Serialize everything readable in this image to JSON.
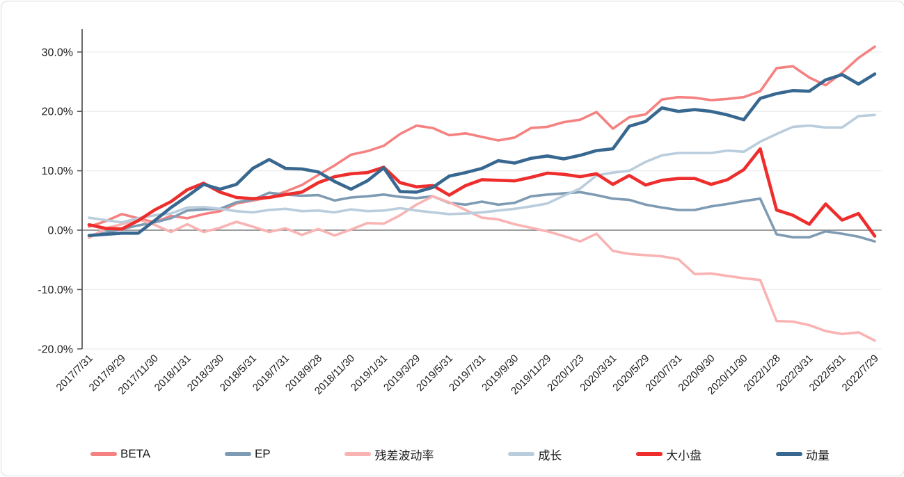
{
  "chart_data": {
    "type": "line",
    "title": "",
    "xlabel": "",
    "ylabel": "",
    "grid": "horizontal-light",
    "legend_position": "bottom",
    "ylim": [
      -20,
      33.8
    ],
    "yticks": [
      {
        "label": "30.0%",
        "value": 30
      },
      {
        "label": "20.0%",
        "value": 20
      },
      {
        "label": "10.0%",
        "value": 10
      },
      {
        "label": "0.0%",
        "value": 0
      },
      {
        "label": "-10.0%",
        "value": -10
      },
      {
        "label": "-20.0%",
        "value": -20
      }
    ],
    "zero_line": true,
    "x_tick_labels": [
      "2017/7/31",
      "2017/9/29",
      "2017/11/30",
      "2018/1/31",
      "2018/3/30",
      "2018/5/31",
      "2018/7/31",
      "2018/9/28",
      "2018/11/30",
      "2019/1/31",
      "2019/3/29",
      "2019/5/31",
      "2019/7/31",
      "2019/9/30",
      "2019/11/29",
      "2020/1/23",
      "2020/3/31",
      "2020/5/29",
      "2020/7/31",
      "2020/9/30",
      "2020/11/30",
      "2022/1/28",
      "2022/3/31",
      "2022/5/31",
      "2022/7/29"
    ],
    "x_dates": [
      "2017/7/31",
      "2017/8/31",
      "2017/9/29",
      "2017/10/31",
      "2017/11/30",
      "2017/12/29",
      "2018/1/31",
      "2018/2/28",
      "2018/3/30",
      "2018/4/30",
      "2018/5/31",
      "2018/6/29",
      "2018/7/31",
      "2018/8/31",
      "2018/9/28",
      "2018/10/31",
      "2018/11/30",
      "2018/12/28",
      "2019/1/31",
      "2019/2/28",
      "2019/3/29",
      "2019/4/30",
      "2019/5/31",
      "2019/6/28",
      "2019/7/31",
      "2019/8/30",
      "2019/9/30",
      "2019/10/31",
      "2019/11/29",
      "2019/12/31",
      "2020/1/23",
      "2020/2/28",
      "2020/3/31",
      "2020/4/30",
      "2020/5/29",
      "2020/6/30",
      "2020/7/31",
      "2020/8/31",
      "2020/9/30",
      "2020/10/30",
      "2020/11/30",
      "2020/12/31",
      "2022/1/28",
      "2022/2/28",
      "2022/3/31",
      "2022/4/29",
      "2022/5/31",
      "2022/6/30",
      "2022/7/29"
    ],
    "series": [
      {
        "name": "BETA",
        "color": "#f58181",
        "line_width": 3.6,
        "values": [
          0.6,
          1.5,
          2.7,
          2.0,
          1.3,
          2.4,
          2.0,
          2.7,
          3.2,
          4.5,
          5.0,
          5.5,
          6.5,
          7.6,
          9.3,
          10.9,
          12.7,
          13.3,
          14.2,
          16.2,
          17.6,
          17.2,
          16.0,
          16.3,
          15.7,
          15.1,
          15.6,
          17.2,
          17.4,
          18.2,
          18.6,
          19.9,
          17.1,
          19.0,
          19.5,
          22.0,
          22.4,
          22.3,
          21.9,
          22.1,
          22.4,
          23.4,
          27.3,
          27.6,
          25.7,
          24.4,
          26.5,
          29.0,
          30.9
        ]
      },
      {
        "name": "EP",
        "color": "#7e9bb4",
        "line_width": 3.6,
        "values": [
          -0.9,
          -0.4,
          0.2,
          0.8,
          1.3,
          2.0,
          3.3,
          3.5,
          3.6,
          4.7,
          5.1,
          6.3,
          6.0,
          5.8,
          5.9,
          5.0,
          5.5,
          5.7,
          6.0,
          5.6,
          5.4,
          5.7,
          4.6,
          4.3,
          4.8,
          4.3,
          4.6,
          5.7,
          6.0,
          6.2,
          6.4,
          5.9,
          5.3,
          5.1,
          4.3,
          3.8,
          3.4,
          3.4,
          4.0,
          4.4,
          4.9,
          5.3,
          -0.7,
          -1.2,
          -1.2,
          -0.2,
          -0.6,
          -1.1,
          -1.9
        ]
      },
      {
        "name": "残差波动率",
        "color": "#f9b3b3",
        "line_width": 3.6,
        "values": [
          -1.3,
          0.3,
          1.0,
          1.8,
          0.9,
          -0.3,
          1.0,
          -0.3,
          0.4,
          1.4,
          0.6,
          -0.3,
          0.3,
          -0.8,
          0.2,
          -0.9,
          0.1,
          1.2,
          1.1,
          2.5,
          4.3,
          5.7,
          4.7,
          3.4,
          2.1,
          1.8,
          1.0,
          0.4,
          -0.2,
          -1.0,
          -1.9,
          -0.6,
          -3.5,
          -4.0,
          -4.2,
          -4.4,
          -4.9,
          -7.4,
          -7.3,
          -7.7,
          -8.1,
          -8.4,
          -15.3,
          -15.4,
          -16.0,
          -17.0,
          -17.5,
          -17.2,
          -18.6
        ]
      },
      {
        "name": "成长",
        "color": "#bacddd",
        "line_width": 3.6,
        "values": [
          2.1,
          1.7,
          1.3,
          2.0,
          2.5,
          2.8,
          3.8,
          3.9,
          3.6,
          3.2,
          3.0,
          3.4,
          3.6,
          3.2,
          3.3,
          3.0,
          3.5,
          3.2,
          3.3,
          3.7,
          3.3,
          3.0,
          2.7,
          2.8,
          3.0,
          3.3,
          3.6,
          4.0,
          4.5,
          5.8,
          7.0,
          9.2,
          9.7,
          10.0,
          11.5,
          12.6,
          13.0,
          13.0,
          13.0,
          13.4,
          13.2,
          14.9,
          16.2,
          17.4,
          17.6,
          17.3,
          17.3,
          19.2,
          19.4
        ]
      },
      {
        "name": "大小盘",
        "color": "#ee2d2d",
        "line_width": 4.6,
        "values": [
          0.9,
          0.3,
          0.2,
          1.6,
          3.4,
          4.8,
          6.8,
          7.9,
          6.4,
          5.5,
          5.3,
          5.5,
          6.0,
          6.4,
          8.0,
          9.0,
          9.5,
          9.7,
          10.6,
          8.0,
          7.3,
          7.5,
          5.9,
          7.5,
          8.5,
          8.4,
          8.3,
          8.9,
          9.6,
          9.4,
          9.0,
          9.5,
          7.7,
          9.2,
          7.6,
          8.4,
          8.7,
          8.7,
          7.7,
          8.5,
          10.2,
          13.7,
          3.4,
          2.5,
          1.0,
          4.4,
          1.7,
          2.8,
          -1.0
        ]
      },
      {
        "name": "动量",
        "color": "#38678f",
        "line_width": 4.6,
        "values": [
          -0.9,
          -0.7,
          -0.5,
          -0.5,
          1.6,
          3.8,
          5.7,
          7.7,
          6.9,
          7.7,
          10.4,
          11.9,
          10.4,
          10.3,
          9.8,
          8.2,
          6.9,
          8.3,
          10.5,
          6.5,
          6.4,
          7.2,
          9.1,
          9.7,
          10.4,
          11.7,
          11.3,
          12.1,
          12.5,
          12.0,
          12.6,
          13.4,
          13.7,
          17.5,
          18.3,
          20.6,
          20.0,
          20.3,
          20.0,
          19.4,
          18.6,
          22.2,
          23.0,
          23.5,
          23.4,
          25.3,
          26.2,
          24.6,
          26.3
        ]
      }
    ]
  },
  "colors": {
    "background": "#ffffff",
    "card_border": "#d9d9d9",
    "axis_line": "#595959",
    "zero_line": "#7f7f7f",
    "gridline": "#ededed",
    "text": "#1a1a1a"
  }
}
